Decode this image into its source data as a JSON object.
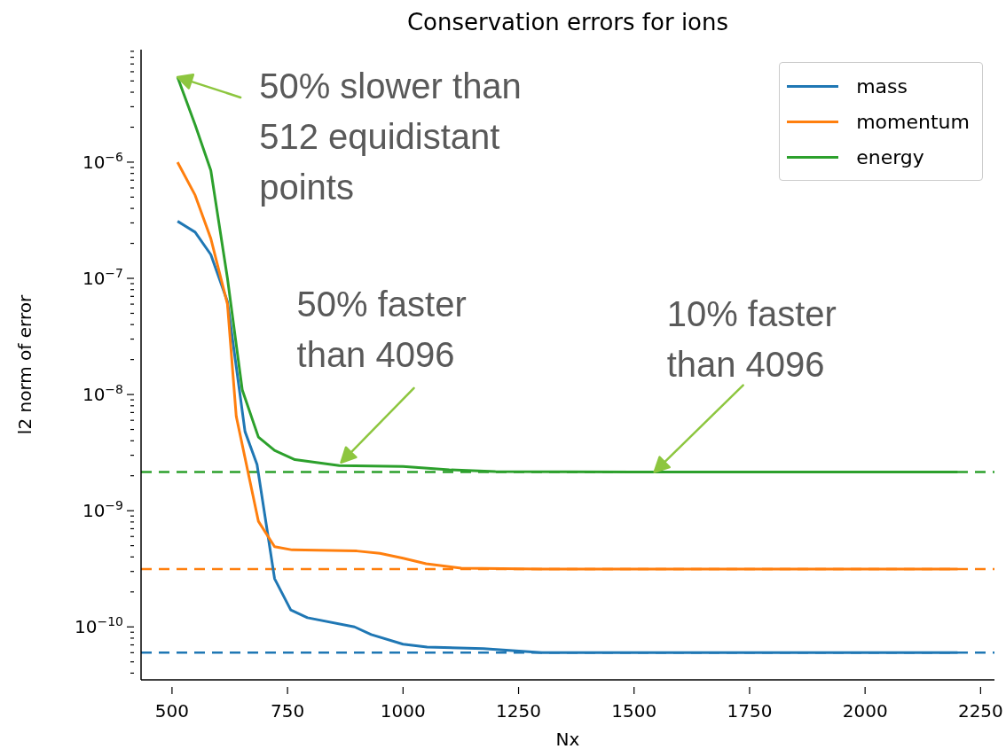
{
  "chart_data": {
    "type": "line",
    "title": "Conservation errors for ions",
    "xlabel": "Nx",
    "ylabel": "l2 norm of error",
    "log": "y",
    "legend": "top right",
    "grid": false,
    "xlim": [
      433,
      2280
    ],
    "xticks": [
      500,
      750,
      1000,
      1250,
      1500,
      1750,
      2000,
      2250
    ],
    "ylim": [
      3.5e-11,
      9.3e-06
    ],
    "yticks": [
      {
        "value": 4e-11,
        "label": null
      },
      {
        "value": 5e-11,
        "label": null
      },
      {
        "value": 6e-11,
        "label": null
      },
      {
        "value": 7e-11,
        "label": null
      },
      {
        "value": 8e-11,
        "label": null
      },
      {
        "value": 9e-11,
        "label": null
      },
      {
        "value": 1e-10,
        "label": "10$^{−10}$"
      },
      {
        "value": 2e-10,
        "label": null
      },
      {
        "value": 3e-10,
        "label": null
      },
      {
        "value": 4e-10,
        "label": null
      },
      {
        "value": 5e-10,
        "label": null
      },
      {
        "value": 6e-10,
        "label": null
      },
      {
        "value": 7e-10,
        "label": null
      },
      {
        "value": 8e-10,
        "label": null
      },
      {
        "value": 9e-10,
        "label": null
      },
      {
        "value": 1e-09,
        "label": "10$^{−9}$"
      },
      {
        "value": 2e-09,
        "label": null
      },
      {
        "value": 3e-09,
        "label": null
      },
      {
        "value": 4e-09,
        "label": null
      },
      {
        "value": 5e-09,
        "label": null
      },
      {
        "value": 6e-09,
        "label": null
      },
      {
        "value": 7e-09,
        "label": null
      },
      {
        "value": 8e-09,
        "label": null
      },
      {
        "value": 9e-09,
        "label": null
      },
      {
        "value": 1e-08,
        "label": "10$^{−8}$"
      },
      {
        "value": 2e-08,
        "label": null
      },
      {
        "value": 3e-08,
        "label": null
      },
      {
        "value": 4e-08,
        "label": null
      },
      {
        "value": 5e-08,
        "label": null
      },
      {
        "value": 6e-08,
        "label": null
      },
      {
        "value": 7e-08,
        "label": null
      },
      {
        "value": 8e-08,
        "label": null
      },
      {
        "value": 9e-08,
        "label": null
      },
      {
        "value": 1e-07,
        "label": "10$^{−7}$"
      },
      {
        "value": 2e-07,
        "label": null
      },
      {
        "value": 3e-07,
        "label": null
      },
      {
        "value": 4e-07,
        "label": null
      },
      {
        "value": 5e-07,
        "label": null
      },
      {
        "value": 6e-07,
        "label": null
      },
      {
        "value": 7e-07,
        "label": null
      },
      {
        "value": 8e-07,
        "label": null
      },
      {
        "value": 9e-07,
        "label": null
      },
      {
        "value": 1e-06,
        "label": "10$^{−6}$"
      },
      {
        "value": 2e-06,
        "label": null
      },
      {
        "value": 3e-06,
        "label": null
      },
      {
        "value": 4e-06,
        "label": null
      },
      {
        "value": 5e-06,
        "label": null
      },
      {
        "value": 6e-06,
        "label": null
      },
      {
        "value": 7e-06,
        "label": null
      },
      {
        "value": 8e-06,
        "label": null
      },
      {
        "value": 9e-06,
        "label": null
      }
    ],
    "series": [
      {
        "name": "mass",
        "color": "#1f77b4",
        "x": [
          512,
          550,
          584,
          620,
          658,
          684,
          722,
          757,
          793,
          895,
          931,
          1000,
          1052,
          1174,
          1300,
          1400,
          1600,
          1800,
          2000,
          2200
        ],
        "values": [
          3.1e-07,
          2.5e-07,
          1.6e-07,
          6.3e-08,
          4.8e-09,
          2.5e-09,
          2.6e-10,
          1.4e-10,
          1.2e-10,
          1e-10,
          8.6e-11,
          7.1e-11,
          6.7e-11,
          6.5e-11,
          6e-11,
          6e-11,
          6e-11,
          6e-11,
          6e-11,
          6e-11
        ]
      },
      {
        "name": "momentum",
        "color": "#ff7f0e",
        "x": [
          512,
          550,
          584,
          620,
          639,
          687,
          722,
          760,
          900,
          950,
          1000,
          1050,
          1126,
          1300,
          1600,
          2000,
          2200
        ],
        "values": [
          1e-06,
          5.2e-07,
          2.2e-07,
          6e-08,
          6.5e-09,
          8.1e-10,
          4.9e-10,
          4.6e-10,
          4.5e-10,
          4.3e-10,
          3.9e-10,
          3.5e-10,
          3.2e-10,
          3.15e-10,
          3.15e-10,
          3.15e-10,
          3.15e-10
        ]
      },
      {
        "name": "energy",
        "color": "#2ca02c",
        "x": [
          512,
          550,
          584,
          620,
          652,
          687,
          722,
          766,
          862,
          1000,
          1100,
          1200,
          1500,
          2000,
          2200
        ],
        "values": [
          5.4e-06,
          2.1e-06,
          8.5e-07,
          1e-07,
          1.1e-08,
          4.3e-09,
          3.3e-09,
          2.75e-09,
          2.45e-09,
          2.4e-09,
          2.25e-09,
          2.17e-09,
          2.15e-09,
          2.15e-09,
          2.15e-09
        ]
      }
    ],
    "ref_lines": [
      {
        "axis": "y",
        "value": 2.15e-09,
        "color": "#2ca02c",
        "line_style": "dashed"
      },
      {
        "axis": "y",
        "value": 3.15e-10,
        "color": "#ff7f0e",
        "line_style": "dashed"
      },
      {
        "axis": "y",
        "value": 6e-11,
        "color": "#1f77b4",
        "line_style": "dashed"
      }
    ],
    "annotations": [
      {
        "text": "50% slower than\n512 equidistant\npoints",
        "x": 512,
        "y": 5.4e-06
      },
      {
        "text": "50% faster\nthan 4096",
        "x": 866,
        "y": 2.6e-09
      },
      {
        "text": "10% faster\nthan 4096",
        "x": 1544,
        "y": 2.15e-09
      }
    ]
  }
}
